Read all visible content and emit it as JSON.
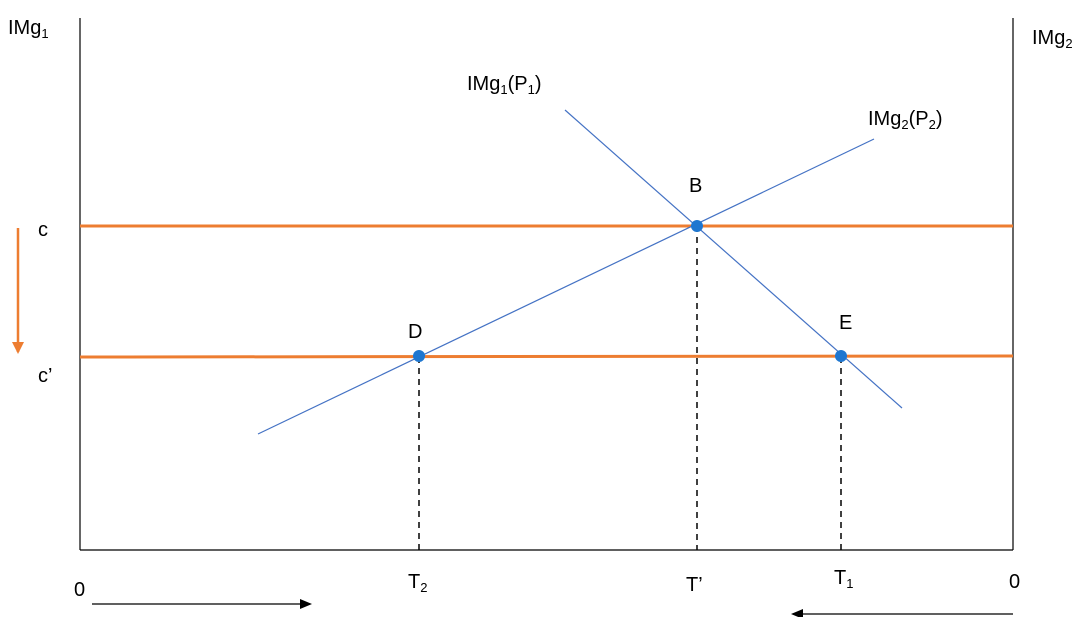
{
  "axes": {
    "left_label": {
      "main": "IMg",
      "sub": "1"
    },
    "right_label": {
      "main": "IMg",
      "sub": "2"
    },
    "origin_left": "0",
    "origin_right": "0"
  },
  "curves": {
    "img1": {
      "main": "IMg",
      "sub1": "1",
      "mid": "(P",
      "sub2": "1",
      "end": ")"
    },
    "img2": {
      "main": "IMg",
      "sub1": "2",
      "mid": "(P",
      "sub2": "2",
      "end": ")"
    }
  },
  "levels": {
    "c": "c",
    "c_prime": "c’"
  },
  "points": {
    "B": "B",
    "D": "D",
    "E": "E"
  },
  "ticks": {
    "t2": {
      "main": "T",
      "sub": "2"
    },
    "t_prime": "T’",
    "t1": {
      "main": "T",
      "sub": "1"
    }
  },
  "colors": {
    "axis": "#000000",
    "curve": "#4472C4",
    "price_line": "#ED7D31",
    "point": "#1F77D0"
  }
}
